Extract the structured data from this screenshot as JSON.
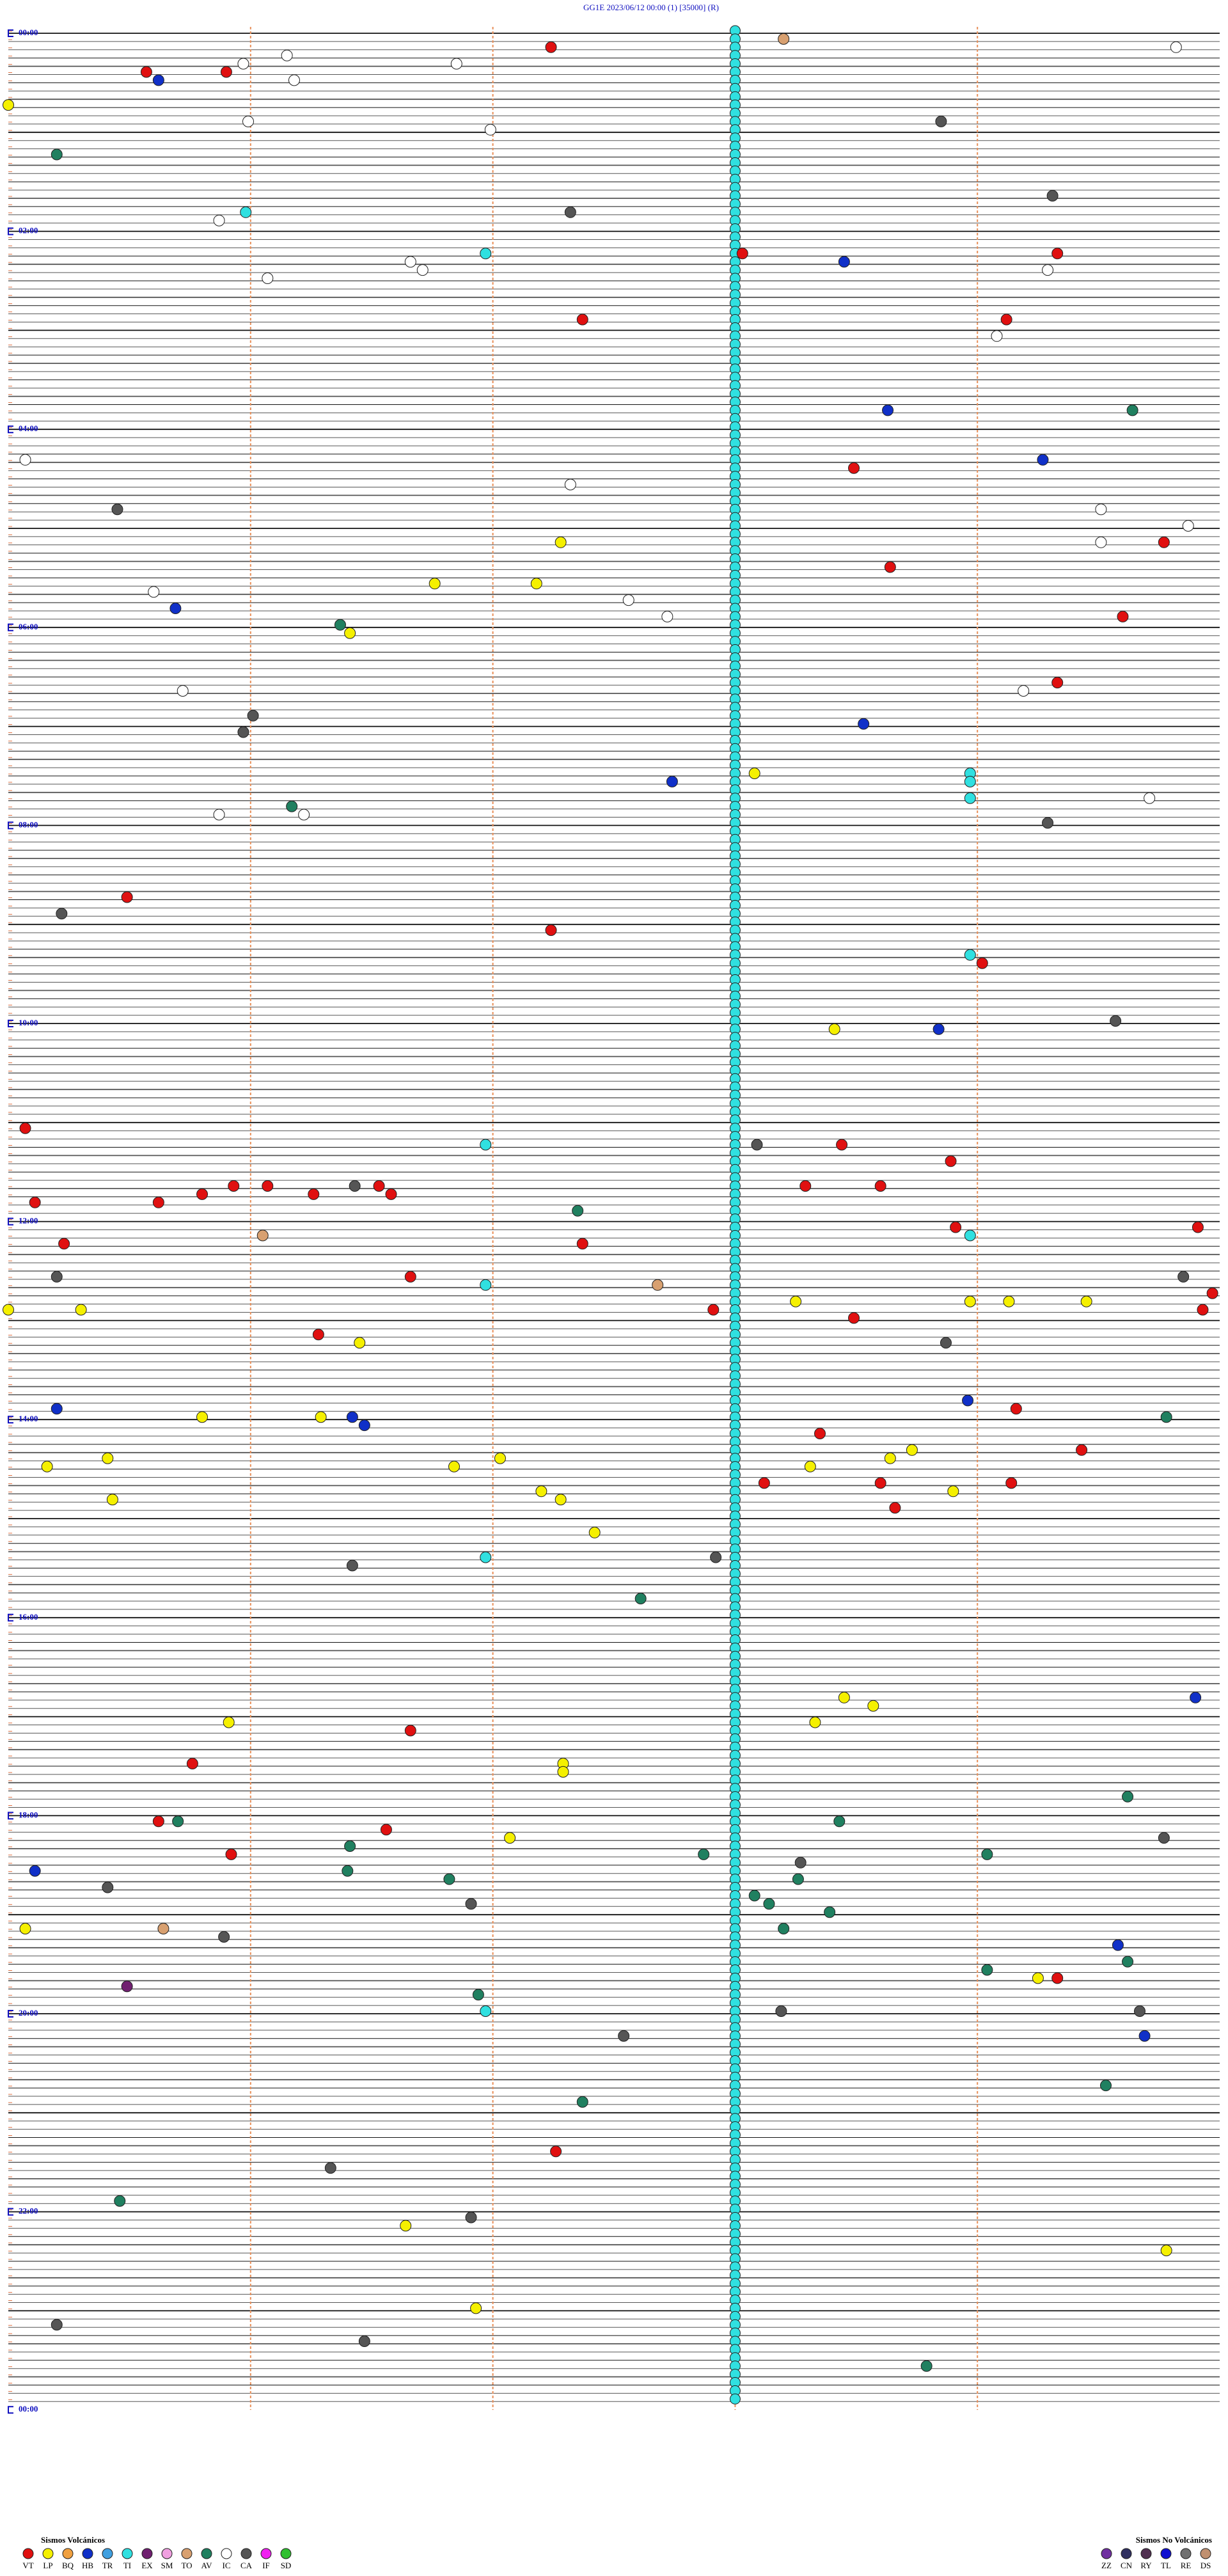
{
  "header": {
    "title": "GG1E    2023/06/12 00:00      (1)    [35000]  (R)"
  },
  "xlim": [
    0,
    5
  ],
  "minute_marks": [
    1,
    2,
    3,
    4
  ],
  "rows_per_label": 24,
  "hour_labels": [
    "00:00",
    "02:00",
    "04:00",
    "06:00",
    "08:00",
    "10:00",
    "12:00",
    "14:00",
    "16:00",
    "18:00",
    "20:00",
    "22:00",
    "00:00"
  ],
  "continuous": {
    "code": "TI",
    "minute": 3.0,
    "rows": [
      0,
      287
    ]
  },
  "events": [
    [
      2,
      2.24,
      "VT"
    ],
    [
      1,
      3.2,
      "TO"
    ],
    [
      2,
      4.82,
      "IC"
    ],
    [
      5,
      0.57,
      "VT"
    ],
    [
      5,
      0.9,
      "VT"
    ],
    [
      6,
      0.62,
      "HB"
    ],
    [
      4,
      0.97,
      "IC"
    ],
    [
      3,
      1.15,
      "IC"
    ],
    [
      4,
      1.85,
      "IC"
    ],
    [
      6,
      1.18,
      "IC"
    ],
    [
      9,
      0,
      "LP"
    ],
    [
      11,
      0.99,
      "IC"
    ],
    [
      11,
      3.85,
      "CA"
    ],
    [
      12,
      1.99,
      "IC"
    ],
    [
      15,
      0.2,
      "AV"
    ],
    [
      20,
      4.31,
      "CA"
    ],
    [
      22,
      0.98,
      "TI"
    ],
    [
      22,
      2.32,
      "CA"
    ],
    [
      23,
      0.87,
      "IC"
    ],
    [
      27,
      1.97,
      "TI"
    ],
    [
      27,
      3.03,
      "VT"
    ],
    [
      28,
      3.45,
      "HB"
    ],
    [
      27,
      4.33,
      "VT"
    ],
    [
      28,
      1.66,
      "IC"
    ],
    [
      29,
      1.71,
      "IC"
    ],
    [
      30,
      1.07,
      "IC"
    ],
    [
      29,
      4.29,
      "IC"
    ],
    [
      35,
      2.37,
      "VT"
    ],
    [
      35,
      4.12,
      "VT"
    ],
    [
      37,
      4.08,
      "IC"
    ],
    [
      46,
      3.63,
      "HB"
    ],
    [
      46,
      4.64,
      "AV"
    ],
    [
      52,
      0.07,
      "IC"
    ],
    [
      52,
      4.27,
      "HB"
    ],
    [
      53,
      3.49,
      "VT"
    ],
    [
      55,
      2.32,
      "IC"
    ],
    [
      58,
      0.45,
      "CA"
    ],
    [
      58,
      4.51,
      "IC"
    ],
    [
      60,
      4.87,
      "IC"
    ],
    [
      62,
      2.28,
      "LP"
    ],
    [
      62,
      4.77,
      "VT"
    ],
    [
      62,
      4.51,
      "IC"
    ],
    [
      65,
      3.64,
      "VT"
    ],
    [
      67,
      1.76,
      "LP"
    ],
    [
      67,
      2.18,
      "LP"
    ],
    [
      68,
      0.6,
      "IC"
    ],
    [
      69,
      2.56,
      "IC"
    ],
    [
      70,
      0.69,
      "HB"
    ],
    [
      72,
      1.37,
      "AV"
    ],
    [
      73,
      1.41,
      "LP"
    ],
    [
      71,
      4.6,
      "VT"
    ],
    [
      71,
      2.72,
      "IC"
    ],
    [
      79,
      4.33,
      "VT"
    ],
    [
      80,
      4.19,
      "IC"
    ],
    [
      80,
      0.72,
      "IC"
    ],
    [
      83,
      1.01,
      "CA"
    ],
    [
      84,
      3.53,
      "HB"
    ],
    [
      85,
      0.97,
      "CA"
    ],
    [
      90,
      3.08,
      "LP"
    ],
    [
      91,
      2.74,
      "HB"
    ],
    [
      90,
      3.97,
      "TI"
    ],
    [
      91,
      3.97,
      "TI"
    ],
    [
      93,
      3.97,
      "TI"
    ],
    [
      94,
      1.17,
      "AV"
    ],
    [
      95,
      1.22,
      "IC"
    ],
    [
      95,
      0.87,
      "IC"
    ],
    [
      96,
      4.29,
      "CA"
    ],
    [
      93,
      4.71,
      "IC"
    ],
    [
      105,
      0.49,
      "VT"
    ],
    [
      107,
      0.22,
      "CA"
    ],
    [
      109,
      2.24,
      "VT"
    ],
    [
      113,
      4.02,
      "VT"
    ],
    [
      112,
      3.97,
      "TI"
    ],
    [
      121,
      3.41,
      "LP"
    ],
    [
      121,
      3.84,
      "HB"
    ],
    [
      120,
      4.57,
      "CA"
    ],
    [
      133,
      0.07,
      "VT"
    ],
    [
      135,
      1.97,
      "TI"
    ],
    [
      135,
      3.09,
      "CA"
    ],
    [
      135,
      3.44,
      "VT"
    ],
    [
      137,
      3.89,
      "VT"
    ],
    [
      142,
      0.62,
      "VT"
    ],
    [
      141,
      0.8,
      "VT"
    ],
    [
      140,
      0.93,
      "VT"
    ],
    [
      140,
      1.07,
      "VT"
    ],
    [
      141,
      1.26,
      "VT"
    ],
    [
      140,
      1.43,
      "CA"
    ],
    [
      140,
      1.53,
      "VT"
    ],
    [
      141,
      1.58,
      "VT"
    ],
    [
      142,
      0.11,
      "VT"
    ],
    [
      143,
      2.35,
      "AV"
    ],
    [
      140,
      3.29,
      "VT"
    ],
    [
      140,
      3.6,
      "VT"
    ],
    [
      147,
      0.23,
      "VT"
    ],
    [
      147,
      2.37,
      "VT"
    ],
    [
      145,
      3.91,
      "VT"
    ],
    [
      145,
      4.91,
      "VT"
    ],
    [
      146,
      3.97,
      "TI"
    ],
    [
      146,
      1.05,
      "TO"
    ],
    [
      151,
      1.66,
      "VT"
    ],
    [
      152,
      1.97,
      "TI"
    ],
    [
      152,
      2.68,
      "TO"
    ],
    [
      151,
      4.85,
      "CA"
    ],
    [
      153,
      4.97,
      "VT"
    ],
    [
      151,
      0.2,
      "CA"
    ],
    [
      155,
      2.91,
      "VT"
    ],
    [
      154,
      3.25,
      "LP"
    ],
    [
      156,
      3.49,
      "VT"
    ],
    [
      154,
      3.97,
      "LP"
    ],
    [
      154,
      4.13,
      "LP"
    ],
    [
      154,
      4.45,
      "LP"
    ],
    [
      155,
      4.93,
      "VT"
    ],
    [
      155,
      0.3,
      "LP"
    ],
    [
      155,
      0,
      "LP"
    ],
    [
      158,
      1.28,
      "VT"
    ],
    [
      159,
      1.45,
      "LP"
    ],
    [
      159,
      3.87,
      "CA"
    ],
    [
      167,
      0.2,
      "HB"
    ],
    [
      168,
      0.8,
      "LP"
    ],
    [
      168,
      1.29,
      "LP"
    ],
    [
      168,
      1.42,
      "HB"
    ],
    [
      169,
      1.47,
      "HB"
    ],
    [
      166,
      3.96,
      "HB"
    ],
    [
      167,
      4.16,
      "VT"
    ],
    [
      168,
      4.78,
      "AV"
    ],
    [
      170,
      3.35,
      "VT"
    ],
    [
      172,
      4.43,
      "VT"
    ],
    [
      173,
      3.64,
      "LP"
    ],
    [
      172,
      3.73,
      "LP"
    ],
    [
      174,
      0.16,
      "LP"
    ],
    [
      173,
      0.41,
      "LP"
    ],
    [
      174,
      1.84,
      "LP"
    ],
    [
      173,
      2.03,
      "LP"
    ],
    [
      174,
      3.31,
      "LP"
    ],
    [
      176,
      3.12,
      "VT"
    ],
    [
      176,
      3.6,
      "VT"
    ],
    [
      176,
      4.14,
      "VT"
    ],
    [
      177,
      3.9,
      "LP"
    ],
    [
      177,
      2.2,
      "LP"
    ],
    [
      178,
      2.28,
      "LP"
    ],
    [
      178,
      0.43,
      "LP"
    ],
    [
      179,
      3.66,
      "VT"
    ],
    [
      182,
      2.42,
      "LP"
    ],
    [
      185,
      1.97,
      "TI"
    ],
    [
      186,
      1.42,
      "CA"
    ],
    [
      185,
      2.92,
      "CA"
    ],
    [
      190,
      2.61,
      "AV"
    ],
    [
      202,
      4.9,
      "HB"
    ],
    [
      202,
      3.45,
      "LP"
    ],
    [
      203,
      3.57,
      "LP"
    ],
    [
      205,
      0.91,
      "LP"
    ],
    [
      206,
      1.66,
      "VT"
    ],
    [
      205,
      3.33,
      "LP"
    ],
    [
      210,
      2.29,
      "LP"
    ],
    [
      211,
      2.29,
      "LP"
    ],
    [
      210,
      0.76,
      "VT"
    ],
    [
      214,
      4.62,
      "AV"
    ],
    [
      217,
      0.62,
      "VT"
    ],
    [
      217,
      0.7,
      "AV"
    ],
    [
      217,
      3.43,
      "AV"
    ],
    [
      218,
      1.56,
      "VT"
    ],
    [
      219,
      4.77,
      "CA"
    ],
    [
      221,
      0.92,
      "VT"
    ],
    [
      220,
      1.41,
      "AV"
    ],
    [
      219,
      2.07,
      "LP"
    ],
    [
      223,
      0.11,
      "HB"
    ],
    [
      223,
      1.4,
      "AV"
    ],
    [
      221,
      2.87,
      "AV"
    ],
    [
      222,
      3.27,
      "CA"
    ],
    [
      221,
      4.04,
      "AV"
    ],
    [
      224,
      1.82,
      "AV"
    ],
    [
      224,
      3.26,
      "AV"
    ],
    [
      225,
      0.41,
      "CA"
    ],
    [
      226,
      3.08,
      "AV"
    ],
    [
      227,
      3.14,
      "AV"
    ],
    [
      228,
      3.39,
      "AV"
    ],
    [
      227,
      1.91,
      "CA"
    ],
    [
      230,
      0.07,
      "LP"
    ],
    [
      230,
      0.64,
      "TO"
    ],
    [
      231,
      0.89,
      "CA"
    ],
    [
      230,
      3.2,
      "AV"
    ],
    [
      232,
      4.58,
      "HB"
    ],
    [
      234,
      4.62,
      "AV"
    ],
    [
      235,
      4.04,
      "AV"
    ],
    [
      236,
      4.25,
      "LP"
    ],
    [
      236,
      4.33,
      "VT"
    ],
    [
      237,
      0.49,
      "EX"
    ],
    [
      238,
      1.94,
      "AV"
    ],
    [
      240,
      1.97,
      "TI"
    ],
    [
      240,
      3.19,
      "CA"
    ],
    [
      240,
      4.67,
      "CA"
    ],
    [
      243,
      4.69,
      "HB"
    ],
    [
      243,
      2.54,
      "CA"
    ],
    [
      249,
      4.53,
      "AV"
    ],
    [
      251,
      2.37,
      "AV"
    ],
    [
      257,
      2.26,
      "VT"
    ],
    [
      259,
      1.33,
      "CA"
    ],
    [
      263,
      0.46,
      "AV"
    ],
    [
      265,
      1.91,
      "CA"
    ],
    [
      266,
      1.64,
      "LP"
    ],
    [
      269,
      4.78,
      "LP"
    ],
    [
      276,
      1.93,
      "LP"
    ],
    [
      278,
      0.2,
      "CA"
    ],
    [
      280,
      1.47,
      "CA"
    ],
    [
      283,
      3.79,
      "AV"
    ]
  ],
  "legend": {
    "volcanic": {
      "title": "Sismos Volcánicos",
      "items": [
        {
          "code": "VT",
          "color": "#e01010"
        },
        {
          "code": "LP",
          "color": "#f5f000"
        },
        {
          "code": "BQ",
          "color": "#f0a040"
        },
        {
          "code": "HB",
          "color": "#1030c8"
        },
        {
          "code": "TR",
          "color": "#40a0e0"
        },
        {
          "code": "TI",
          "color": "#30e0e0"
        },
        {
          "code": "EX",
          "color": "#702070"
        },
        {
          "code": "SM",
          "color": "#f0a0e0"
        },
        {
          "code": "TO",
          "color": "#d8a070"
        },
        {
          "code": "AV",
          "color": "#208060"
        },
        {
          "code": "IC",
          "color": "#ffffff"
        },
        {
          "code": "CA",
          "color": "#555555"
        },
        {
          "code": "IF",
          "color": "#f020f0"
        },
        {
          "code": "SD",
          "color": "#30c030"
        }
      ]
    },
    "non_volcanic": {
      "title": "Sismos No Volcánicos",
      "items": [
        {
          "code": "ZZ",
          "color": "#7030a0"
        },
        {
          "code": "CN",
          "color": "#303060"
        },
        {
          "code": "RY",
          "color": "#503050"
        },
        {
          "code": "TL",
          "color": "#1010d0"
        },
        {
          "code": "RE",
          "color": "#707070"
        },
        {
          "code": "DS",
          "color": "#c09070"
        }
      ]
    }
  }
}
